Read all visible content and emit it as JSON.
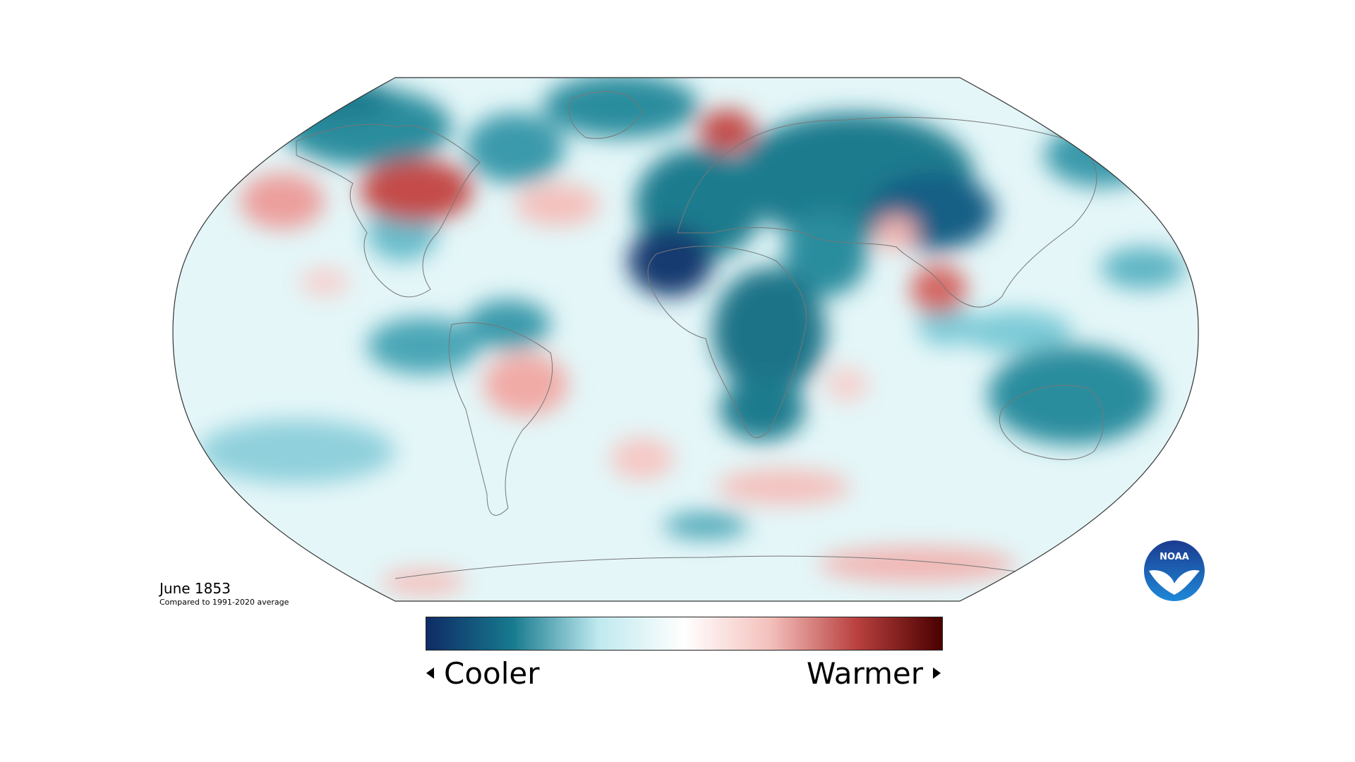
{
  "map": {
    "projection": "Robinson",
    "subject": "Surface temperature anomaly",
    "colors": {
      "strong_cool": "#0f2b66",
      "cool": "#167a8e",
      "mild_cool": "#8fd3df",
      "neutral": "#ffffff",
      "mild_warm": "#f3b7b4",
      "warm": "#c0413f",
      "strong_warm": "#4a0000"
    }
  },
  "caption": {
    "title": "June 1853",
    "subtitle": "Compared to 1991-2020 average"
  },
  "legend": {
    "cooler_label": "Cooler",
    "warmer_label": "Warmer",
    "gradient": [
      "#0f2b66",
      "#167a8e",
      "#bfe9ef",
      "#ffffff",
      "#f4c0bc",
      "#b9413f",
      "#4a0000"
    ]
  },
  "logo": {
    "text": "NOAA",
    "icon": "noaa-bird-logo"
  }
}
